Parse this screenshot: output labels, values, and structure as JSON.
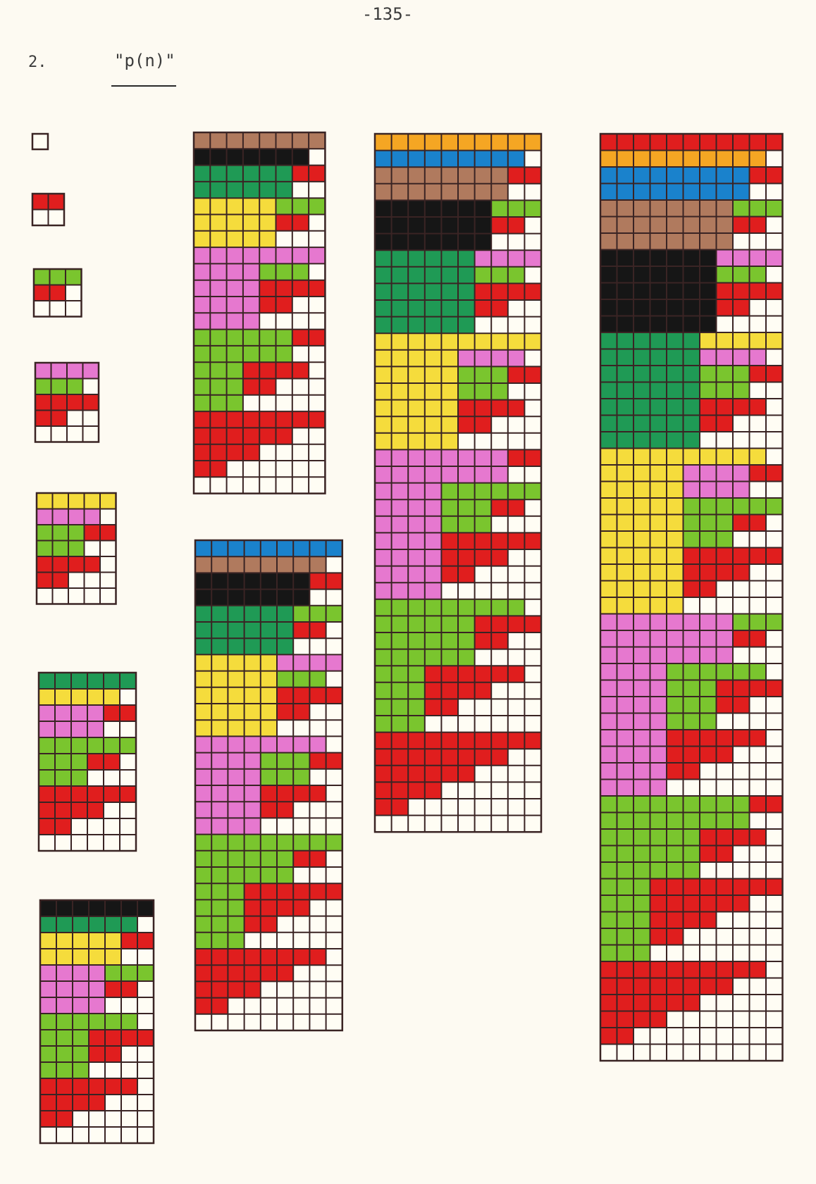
{
  "page_number": "-135-",
  "section": {
    "number": "2.",
    "title": "\"p(n)\""
  },
  "colors": {
    "cell": "#fffdf4",
    "grid": "#3a2424",
    "red": "#e01e1e",
    "lightgreen": "#7ac52e",
    "darkgreen": "#1f9a55",
    "pink": "#e678cf",
    "yellow": "#f5dc3c",
    "black": "#161616",
    "brown": "#b07a5e",
    "blue": "#1a82cc",
    "orange": "#f5a623"
  },
  "partition_diagrams": [
    {
      "n": 1,
      "partition_count": 1,
      "color_sequence": []
    },
    {
      "n": 2,
      "partition_count": 2,
      "color_sequence": [
        "red"
      ]
    },
    {
      "n": 3,
      "partition_count": 3,
      "color_sequence": [
        "lightgreen",
        "red"
      ]
    },
    {
      "n": 4,
      "partition_count": 5,
      "color_sequence": [
        "pink",
        "lightgreen",
        "red"
      ]
    },
    {
      "n": 5,
      "partition_count": 7,
      "color_sequence": [
        "yellow",
        "pink",
        "lightgreen",
        "red"
      ]
    },
    {
      "n": 6,
      "partition_count": 11,
      "color_sequence": [
        "darkgreen",
        "yellow",
        "pink",
        "lightgreen",
        "red"
      ]
    },
    {
      "n": 7,
      "partition_count": 15,
      "color_sequence": [
        "black",
        "darkgreen",
        "yellow",
        "pink",
        "lightgreen",
        "red"
      ]
    },
    {
      "n": 8,
      "partition_count": 22,
      "color_sequence": [
        "brown",
        "black",
        "darkgreen",
        "yellow",
        "pink",
        "lightgreen",
        "red"
      ]
    },
    {
      "n": 9,
      "partition_count": 30,
      "color_sequence": [
        "blue",
        "brown",
        "black",
        "darkgreen",
        "yellow",
        "pink",
        "lightgreen",
        "red"
      ]
    },
    {
      "n": 10,
      "partition_count": 42,
      "color_sequence": [
        "orange",
        "blue",
        "brown",
        "black",
        "darkgreen",
        "yellow",
        "pink",
        "lightgreen",
        "red"
      ]
    },
    {
      "n": 11,
      "partition_count": 56,
      "color_sequence": [
        "orange",
        "blue",
        "brown",
        "black",
        "darkgreen",
        "yellow",
        "pink",
        "lightgreen",
        "red"
      ]
    }
  ]
}
